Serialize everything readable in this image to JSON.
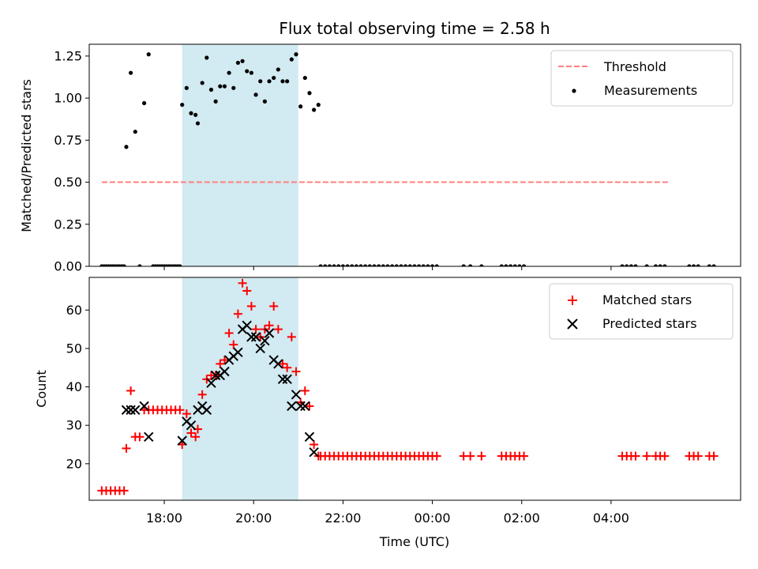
{
  "chart_data": {
    "title": "Flux total observing time = 2.58 h",
    "xlabel": "Time (UTC)",
    "x_units": "hours since 16:00 UTC",
    "x_range": [
      0.32,
      14.9
    ],
    "x_ticks": [
      2,
      4,
      6,
      8,
      10,
      12
    ],
    "x_tick_labels": [
      "18:00",
      "20:00",
      "22:00",
      "00:00",
      "02:00",
      "04:00"
    ],
    "highlight_span": [
      2.4,
      5.0
    ],
    "colors": {
      "span": "#add8e6",
      "threshold": "#ff7f7f",
      "matched": "#ff0000",
      "predicted": "#000000",
      "measurement": "#000000"
    },
    "panels": [
      {
        "type": "scatter",
        "ylabel": "Matched/Predicted stars",
        "ylim": [
          0,
          1.32
        ],
        "yticks": [
          0,
          0.25,
          0.5,
          0.75,
          1.0,
          1.25
        ],
        "ytick_labels": [
          "0.00",
          "0.25",
          "0.50",
          "0.75",
          "1.00",
          "1.25"
        ],
        "threshold": {
          "label": "Threshold",
          "y": 0.5,
          "x_start": 0.6,
          "x_end": 13.3
        },
        "legend": [
          "Threshold",
          "Measurements"
        ],
        "legend_loc": "upper right",
        "measurements": [
          [
            0.6,
            0
          ],
          [
            0.65,
            0
          ],
          [
            0.7,
            0
          ],
          [
            0.75,
            0
          ],
          [
            0.8,
            0
          ],
          [
            0.85,
            0
          ],
          [
            0.9,
            0
          ],
          [
            0.95,
            0
          ],
          [
            1.0,
            0
          ],
          [
            1.05,
            0
          ],
          [
            1.1,
            0
          ],
          [
            1.15,
            0.71
          ],
          [
            1.25,
            1.15
          ],
          [
            1.35,
            0.8
          ],
          [
            1.45,
            0
          ],
          [
            1.55,
            0.97
          ],
          [
            1.65,
            1.26
          ],
          [
            1.75,
            0
          ],
          [
            1.8,
            0
          ],
          [
            1.85,
            0
          ],
          [
            1.9,
            0
          ],
          [
            1.95,
            0
          ],
          [
            2.0,
            0
          ],
          [
            2.05,
            0
          ],
          [
            2.1,
            0
          ],
          [
            2.15,
            0
          ],
          [
            2.2,
            0
          ],
          [
            2.25,
            0
          ],
          [
            2.3,
            0
          ],
          [
            2.35,
            0
          ],
          [
            2.4,
            0.96
          ],
          [
            2.5,
            1.06
          ],
          [
            2.6,
            0.91
          ],
          [
            2.7,
            0.9
          ],
          [
            2.75,
            0.85
          ],
          [
            2.85,
            1.09
          ],
          [
            2.95,
            1.24
          ],
          [
            3.05,
            1.05
          ],
          [
            3.15,
            0.98
          ],
          [
            3.25,
            1.07
          ],
          [
            3.35,
            1.07
          ],
          [
            3.45,
            1.15
          ],
          [
            3.55,
            1.06
          ],
          [
            3.65,
            1.21
          ],
          [
            3.75,
            1.22
          ],
          [
            3.85,
            1.16
          ],
          [
            3.95,
            1.15
          ],
          [
            4.05,
            1.02
          ],
          [
            4.15,
            1.1
          ],
          [
            4.25,
            0.98
          ],
          [
            4.35,
            1.1
          ],
          [
            4.45,
            1.12
          ],
          [
            4.55,
            1.17
          ],
          [
            4.65,
            1.1
          ],
          [
            4.75,
            1.1
          ],
          [
            4.85,
            1.23
          ],
          [
            4.95,
            1.26
          ],
          [
            5.05,
            0.95
          ],
          [
            5.15,
            1.12
          ],
          [
            5.25,
            1.03
          ],
          [
            5.35,
            0.93
          ],
          [
            5.45,
            0.96
          ],
          [
            5.5,
            0
          ],
          [
            5.6,
            0
          ],
          [
            5.7,
            0
          ],
          [
            5.8,
            0
          ],
          [
            5.9,
            0
          ],
          [
            6.0,
            0
          ],
          [
            6.1,
            0
          ],
          [
            6.2,
            0
          ],
          [
            6.3,
            0
          ],
          [
            6.4,
            0
          ],
          [
            6.5,
            0
          ],
          [
            6.6,
            0
          ],
          [
            6.7,
            0
          ],
          [
            6.8,
            0
          ],
          [
            6.9,
            0
          ],
          [
            7.0,
            0
          ],
          [
            7.1,
            0
          ],
          [
            7.2,
            0
          ],
          [
            7.3,
            0
          ],
          [
            7.4,
            0
          ],
          [
            7.5,
            0
          ],
          [
            7.6,
            0
          ],
          [
            7.7,
            0
          ],
          [
            7.8,
            0
          ],
          [
            7.9,
            0
          ],
          [
            8.0,
            0
          ],
          [
            8.1,
            0
          ],
          [
            8.7,
            0
          ],
          [
            8.85,
            0
          ],
          [
            9.1,
            0
          ],
          [
            9.55,
            0
          ],
          [
            9.65,
            0
          ],
          [
            9.75,
            0
          ],
          [
            9.85,
            0
          ],
          [
            9.95,
            0
          ],
          [
            10.05,
            0
          ],
          [
            12.25,
            0
          ],
          [
            12.35,
            0
          ],
          [
            12.45,
            0
          ],
          [
            12.55,
            0
          ],
          [
            12.8,
            0
          ],
          [
            13.0,
            0
          ],
          [
            13.1,
            0
          ],
          [
            13.2,
            0
          ],
          [
            13.75,
            0
          ],
          [
            13.85,
            0
          ],
          [
            13.95,
            0
          ],
          [
            14.2,
            0
          ],
          [
            14.3,
            0
          ]
        ]
      },
      {
        "type": "scatter",
        "ylabel": "Count",
        "ylim": [
          10.5,
          68.5
        ],
        "yticks": [
          20,
          30,
          40,
          50,
          60
        ],
        "ytick_labels": [
          "20",
          "30",
          "40",
          "50",
          "60"
        ],
        "legend": [
          "Matched stars",
          "Predicted stars"
        ],
        "legend_loc": "upper right",
        "matched": [
          [
            0.6,
            13
          ],
          [
            0.7,
            13
          ],
          [
            0.8,
            13
          ],
          [
            0.9,
            13
          ],
          [
            1.0,
            13
          ],
          [
            1.1,
            13
          ],
          [
            1.15,
            24
          ],
          [
            1.25,
            39
          ],
          [
            1.35,
            27
          ],
          [
            1.45,
            27
          ],
          [
            1.55,
            34
          ],
          [
            1.65,
            34
          ],
          [
            1.75,
            34
          ],
          [
            1.85,
            34
          ],
          [
            1.95,
            34
          ],
          [
            2.05,
            34
          ],
          [
            2.15,
            34
          ],
          [
            2.25,
            34
          ],
          [
            2.35,
            34
          ],
          [
            2.4,
            25
          ],
          [
            2.5,
            33
          ],
          [
            2.6,
            28
          ],
          [
            2.7,
            27
          ],
          [
            2.75,
            29
          ],
          [
            2.85,
            38
          ],
          [
            2.95,
            42
          ],
          [
            3.05,
            43
          ],
          [
            3.15,
            43
          ],
          [
            3.25,
            46
          ],
          [
            3.35,
            47
          ],
          [
            3.45,
            54
          ],
          [
            3.55,
            51
          ],
          [
            3.65,
            59
          ],
          [
            3.75,
            67
          ],
          [
            3.85,
            65
          ],
          [
            3.95,
            61
          ],
          [
            4.05,
            55
          ],
          [
            4.15,
            53
          ],
          [
            4.25,
            55
          ],
          [
            4.35,
            56
          ],
          [
            4.45,
            61
          ],
          [
            4.55,
            55
          ],
          [
            4.65,
            46
          ],
          [
            4.75,
            45
          ],
          [
            4.85,
            53
          ],
          [
            4.95,
            44
          ],
          [
            5.05,
            36
          ],
          [
            5.15,
            39
          ],
          [
            5.25,
            35
          ],
          [
            5.35,
            25
          ],
          [
            5.45,
            22
          ],
          [
            5.5,
            22
          ],
          [
            5.6,
            22
          ],
          [
            5.7,
            22
          ],
          [
            5.8,
            22
          ],
          [
            5.9,
            22
          ],
          [
            6.0,
            22
          ],
          [
            6.1,
            22
          ],
          [
            6.2,
            22
          ],
          [
            6.3,
            22
          ],
          [
            6.4,
            22
          ],
          [
            6.5,
            22
          ],
          [
            6.6,
            22
          ],
          [
            6.7,
            22
          ],
          [
            6.8,
            22
          ],
          [
            6.9,
            22
          ],
          [
            7.0,
            22
          ],
          [
            7.1,
            22
          ],
          [
            7.2,
            22
          ],
          [
            7.3,
            22
          ],
          [
            7.4,
            22
          ],
          [
            7.5,
            22
          ],
          [
            7.6,
            22
          ],
          [
            7.7,
            22
          ],
          [
            7.8,
            22
          ],
          [
            7.9,
            22
          ],
          [
            8.0,
            22
          ],
          [
            8.1,
            22
          ],
          [
            8.7,
            22
          ],
          [
            8.85,
            22
          ],
          [
            9.1,
            22
          ],
          [
            9.55,
            22
          ],
          [
            9.65,
            22
          ],
          [
            9.75,
            22
          ],
          [
            9.85,
            22
          ],
          [
            9.95,
            22
          ],
          [
            10.05,
            22
          ],
          [
            12.25,
            22
          ],
          [
            12.35,
            22
          ],
          [
            12.45,
            22
          ],
          [
            12.55,
            22
          ],
          [
            12.8,
            22
          ],
          [
            13.0,
            22
          ],
          [
            13.1,
            22
          ],
          [
            13.2,
            22
          ],
          [
            13.75,
            22
          ],
          [
            13.85,
            22
          ],
          [
            13.95,
            22
          ],
          [
            14.2,
            22
          ],
          [
            14.3,
            22
          ]
        ],
        "predicted": [
          [
            1.15,
            34
          ],
          [
            1.25,
            34
          ],
          [
            1.35,
            34
          ],
          [
            1.55,
            35
          ],
          [
            1.65,
            27
          ],
          [
            2.4,
            26
          ],
          [
            2.5,
            31
          ],
          [
            2.6,
            30
          ],
          [
            2.75,
            34
          ],
          [
            2.85,
            35
          ],
          [
            2.95,
            34
          ],
          [
            3.05,
            41
          ],
          [
            3.15,
            43
          ],
          [
            3.25,
            43
          ],
          [
            3.35,
            44
          ],
          [
            3.45,
            47
          ],
          [
            3.55,
            48
          ],
          [
            3.65,
            49
          ],
          [
            3.75,
            55
          ],
          [
            3.85,
            56
          ],
          [
            3.95,
            53
          ],
          [
            4.05,
            53
          ],
          [
            4.15,
            50
          ],
          [
            4.25,
            52
          ],
          [
            4.35,
            54
          ],
          [
            4.45,
            47
          ],
          [
            4.55,
            46
          ],
          [
            4.65,
            42
          ],
          [
            4.75,
            42
          ],
          [
            4.85,
            35
          ],
          [
            4.95,
            38
          ],
          [
            5.05,
            35
          ],
          [
            5.15,
            35
          ],
          [
            5.25,
            27
          ],
          [
            5.35,
            23
          ]
        ]
      }
    ]
  }
}
